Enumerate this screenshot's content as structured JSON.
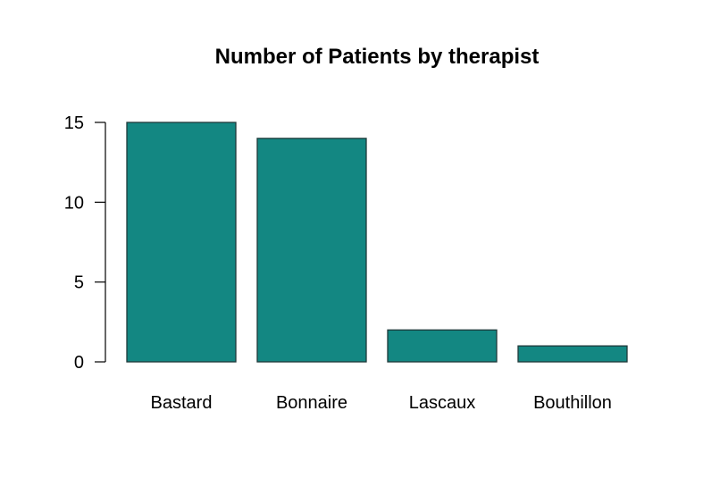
{
  "chart_data": {
    "type": "bar",
    "title": "Number of Patients by therapist",
    "xlabel": "",
    "ylabel": "",
    "categories": [
      "Bastard",
      "Bonnaire",
      "Lascaux",
      "Bouthillon"
    ],
    "values": [
      15,
      14,
      2,
      1
    ],
    "yticks": [
      0,
      5,
      10,
      15
    ],
    "ylim": [
      0,
      15
    ],
    "grid": false,
    "legend": "none",
    "colors": {
      "bar_fill": "#138782",
      "bar_stroke": "#1f3a3a",
      "axis": "#000000"
    }
  }
}
